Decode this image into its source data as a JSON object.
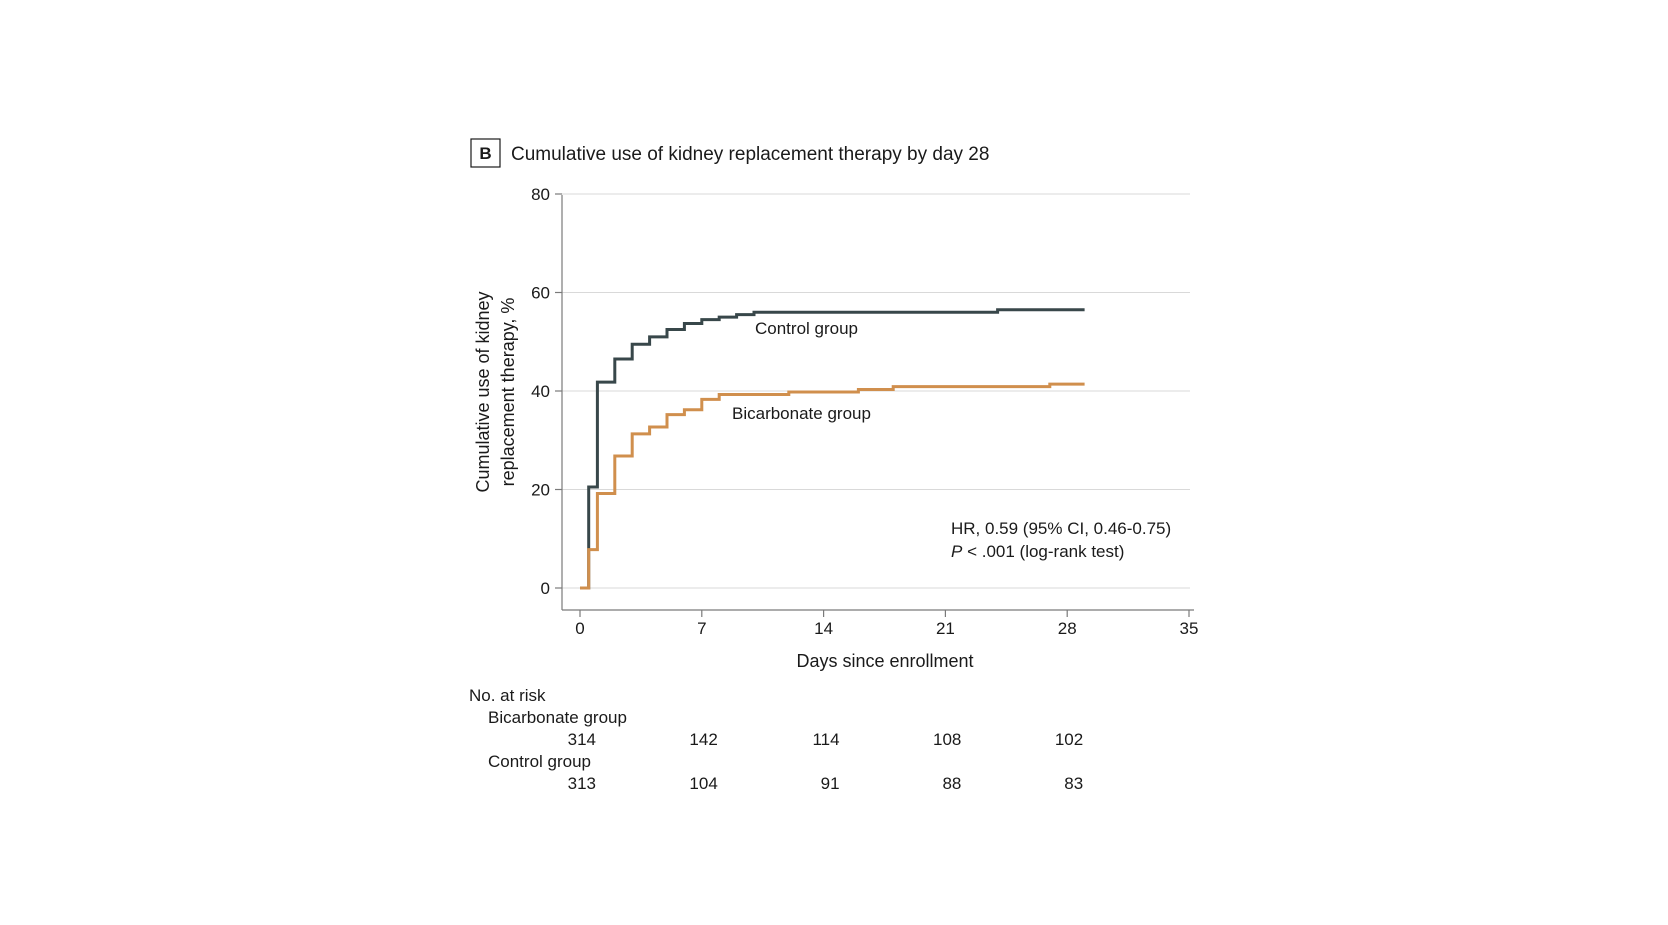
{
  "panel": {
    "letter": "B",
    "title": "Cumulative use of kidney replacement therapy by day 28"
  },
  "chart_data": {
    "type": "line",
    "subtype": "kaplan-meier-step",
    "title": "Cumulative use of kidney replacement therapy by day 28",
    "xlabel": "Days since enrollment",
    "ylabel_lines": [
      "Cumulative use of kidney",
      "replacement therapy, %"
    ],
    "xlim": [
      0,
      35
    ],
    "ylim": [
      0,
      80
    ],
    "xticks": [
      0,
      7,
      14,
      21,
      28,
      35
    ],
    "yticks": [
      0,
      20,
      40,
      60,
      80
    ],
    "grid": "horizontal",
    "series": [
      {
        "name": "Control group",
        "color": "#38474a",
        "label": "Control group",
        "x": [
          0,
          0.4,
          0.5,
          1.0,
          2.0,
          3.0,
          4.0,
          5.0,
          6.0,
          7.0,
          8.0,
          9.0,
          10.0,
          24.0,
          29.0
        ],
        "y": [
          0,
          0,
          20.5,
          41.8,
          46.5,
          49.5,
          51.0,
          52.5,
          53.7,
          54.5,
          55.0,
          55.5,
          56.0,
          56.5,
          56.5
        ]
      },
      {
        "name": "Bicarbonate group",
        "color": "#d08f4d",
        "label": "Bicarbonate group",
        "x": [
          0,
          0.5,
          1.0,
          2.0,
          3.0,
          4.0,
          5.0,
          6.0,
          7.0,
          8.0,
          12.0,
          16.0,
          18.0,
          27.0,
          29.0
        ],
        "y": [
          0,
          7.8,
          19.2,
          26.8,
          31.3,
          32.7,
          35.2,
          36.2,
          38.3,
          39.3,
          39.8,
          40.3,
          40.9,
          41.4,
          41.4
        ]
      }
    ],
    "annotations": {
      "hr": "HR, 0.59 (95% CI, 0.46-0.75)",
      "p_italic": "P",
      "p_rest": " < .001 (log-rank test)"
    },
    "risk_table": {
      "header": "No. at risk",
      "days": [
        0,
        7,
        14,
        21,
        28
      ],
      "groups": [
        {
          "name": "Bicarbonate group",
          "counts": [
            "314",
            "142",
            "114",
            "108",
            "102"
          ]
        },
        {
          "name": "Control group",
          "counts": [
            "313",
            "104",
            "91",
            "88",
            "83"
          ]
        }
      ]
    }
  }
}
